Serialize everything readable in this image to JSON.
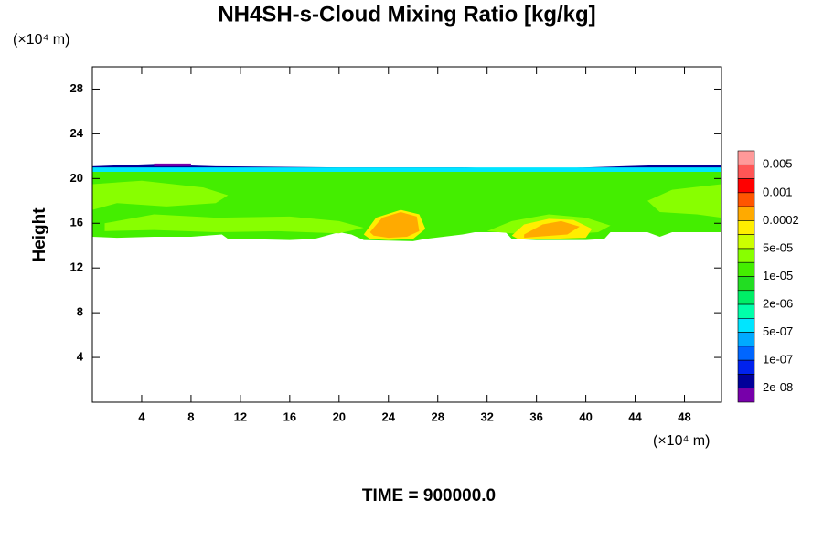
{
  "chart_data": {
    "type": "contour",
    "title": "NH4SH-s-Cloud Mixing Ratio [kg/kg]",
    "y_label": "Height",
    "y_unit": "(×10⁴ m)",
    "x_unit": "(×10⁴ m)",
    "footer": "TIME = 900000.0",
    "xlim": [
      0,
      51
    ],
    "ylim": [
      0,
      30
    ],
    "xticks": [
      4,
      8,
      12,
      16,
      20,
      24,
      28,
      32,
      36,
      40,
      44,
      48
    ],
    "yticks": [
      4,
      8,
      12,
      16,
      20,
      24,
      28
    ],
    "colorbar": {
      "colors": [
        "#ff9999",
        "#ff5555",
        "#ff0000",
        "#ff5500",
        "#ffaa00",
        "#ffee00",
        "#ccff00",
        "#88ff00",
        "#44ee00",
        "#22dd22",
        "#00ee66",
        "#00ffaa",
        "#00e5ff",
        "#00aaff",
        "#0066ff",
        "#0022ee",
        "#000099",
        "#7700aa"
      ],
      "labels": [
        "0.005",
        "0.001",
        "0.0002",
        "5e-05",
        "1e-05",
        "2e-06",
        "5e-07",
        "1e-07",
        "2e-08"
      ]
    },
    "regions": [
      {
        "level": 16,
        "x": [
          0,
          5,
          7,
          10,
          20,
          30,
          36,
          40,
          46,
          51,
          51,
          0
        ],
        "y": [
          21.1,
          21.3,
          21.2,
          21.1,
          21.0,
          21.0,
          20.8,
          21.0,
          21.2,
          21.2,
          20.6,
          20.6
        ]
      },
      {
        "level": 17,
        "x": [
          5,
          8,
          8,
          5
        ],
        "y": [
          21.1,
          21.1,
          21.35,
          21.35
        ]
      },
      {
        "level": 12,
        "x": [
          0,
          51,
          51,
          0
        ],
        "y": [
          20.3,
          20.3,
          21.0,
          21.0
        ]
      },
      {
        "level": 8,
        "x": [
          0,
          51,
          51,
          47,
          46,
          45,
          42,
          41.5,
          40,
          38,
          36,
          34,
          33.5,
          31,
          30,
          27,
          26,
          22,
          21,
          20,
          18,
          16,
          12,
          11,
          10.5,
          8,
          5,
          2,
          0
        ],
        "y": [
          20.6,
          20.6,
          15.2,
          15.2,
          14.8,
          15.2,
          15.2,
          14.6,
          14.5,
          14.5,
          14.5,
          14.6,
          15.2,
          15.2,
          15.0,
          14.6,
          14.4,
          14.5,
          15.0,
          15.2,
          14.6,
          14.5,
          14.6,
          14.6,
          15.0,
          14.8,
          14.8,
          14.7,
          14.8
        ]
      },
      {
        "level": 7,
        "x": [
          0,
          4,
          9,
          11,
          10,
          6,
          2,
          0
        ],
        "y": [
          19.5,
          19.8,
          19.2,
          18.5,
          17.8,
          17.5,
          17.8,
          17.2
        ]
      },
      {
        "level": 7,
        "x": [
          51,
          47,
          45,
          46,
          49,
          51
        ],
        "y": [
          19.5,
          19.0,
          18.0,
          17.0,
          16.8,
          16.5
        ]
      },
      {
        "level": 7,
        "x": [
          1,
          5,
          10,
          16,
          20,
          22,
          20,
          15,
          10,
          5,
          1
        ],
        "y": [
          16.0,
          16.8,
          16.5,
          16.6,
          16.2,
          15.6,
          15.1,
          15.3,
          15.2,
          15.4,
          15.3
        ]
      },
      {
        "level": 7,
        "x": [
          32,
          34,
          37,
          40,
          42,
          41,
          38,
          34
        ],
        "y": [
          15.3,
          16.2,
          16.8,
          16.5,
          15.8,
          15.2,
          15.0,
          15.1
        ]
      },
      {
        "level": 5,
        "x": [
          22,
          23,
          25,
          26.5,
          27,
          26,
          24,
          22.5
        ],
        "y": [
          15,
          16.5,
          17.2,
          16.8,
          15.5,
          14.6,
          14.5,
          14.6
        ]
      },
      {
        "level": 5,
        "x": [
          34,
          35,
          37,
          39,
          40.5,
          40,
          37,
          34.5
        ],
        "y": [
          14.9,
          15.9,
          16.4,
          16.3,
          15.5,
          14.7,
          14.6,
          14.6
        ]
      },
      {
        "level": 4,
        "x": [
          22.5,
          23.5,
          25,
          26.3,
          26.5,
          25.5,
          24,
          22.8
        ],
        "y": [
          15.2,
          16.5,
          17,
          16.6,
          15.3,
          14.8,
          14.7,
          14.9
        ]
      },
      {
        "level": 4,
        "x": [
          35,
          36.5,
          38,
          39.5,
          38.5,
          36,
          35
        ],
        "y": [
          15.0,
          15.9,
          16.2,
          15.7,
          15.0,
          14.8,
          14.7
        ]
      }
    ]
  }
}
